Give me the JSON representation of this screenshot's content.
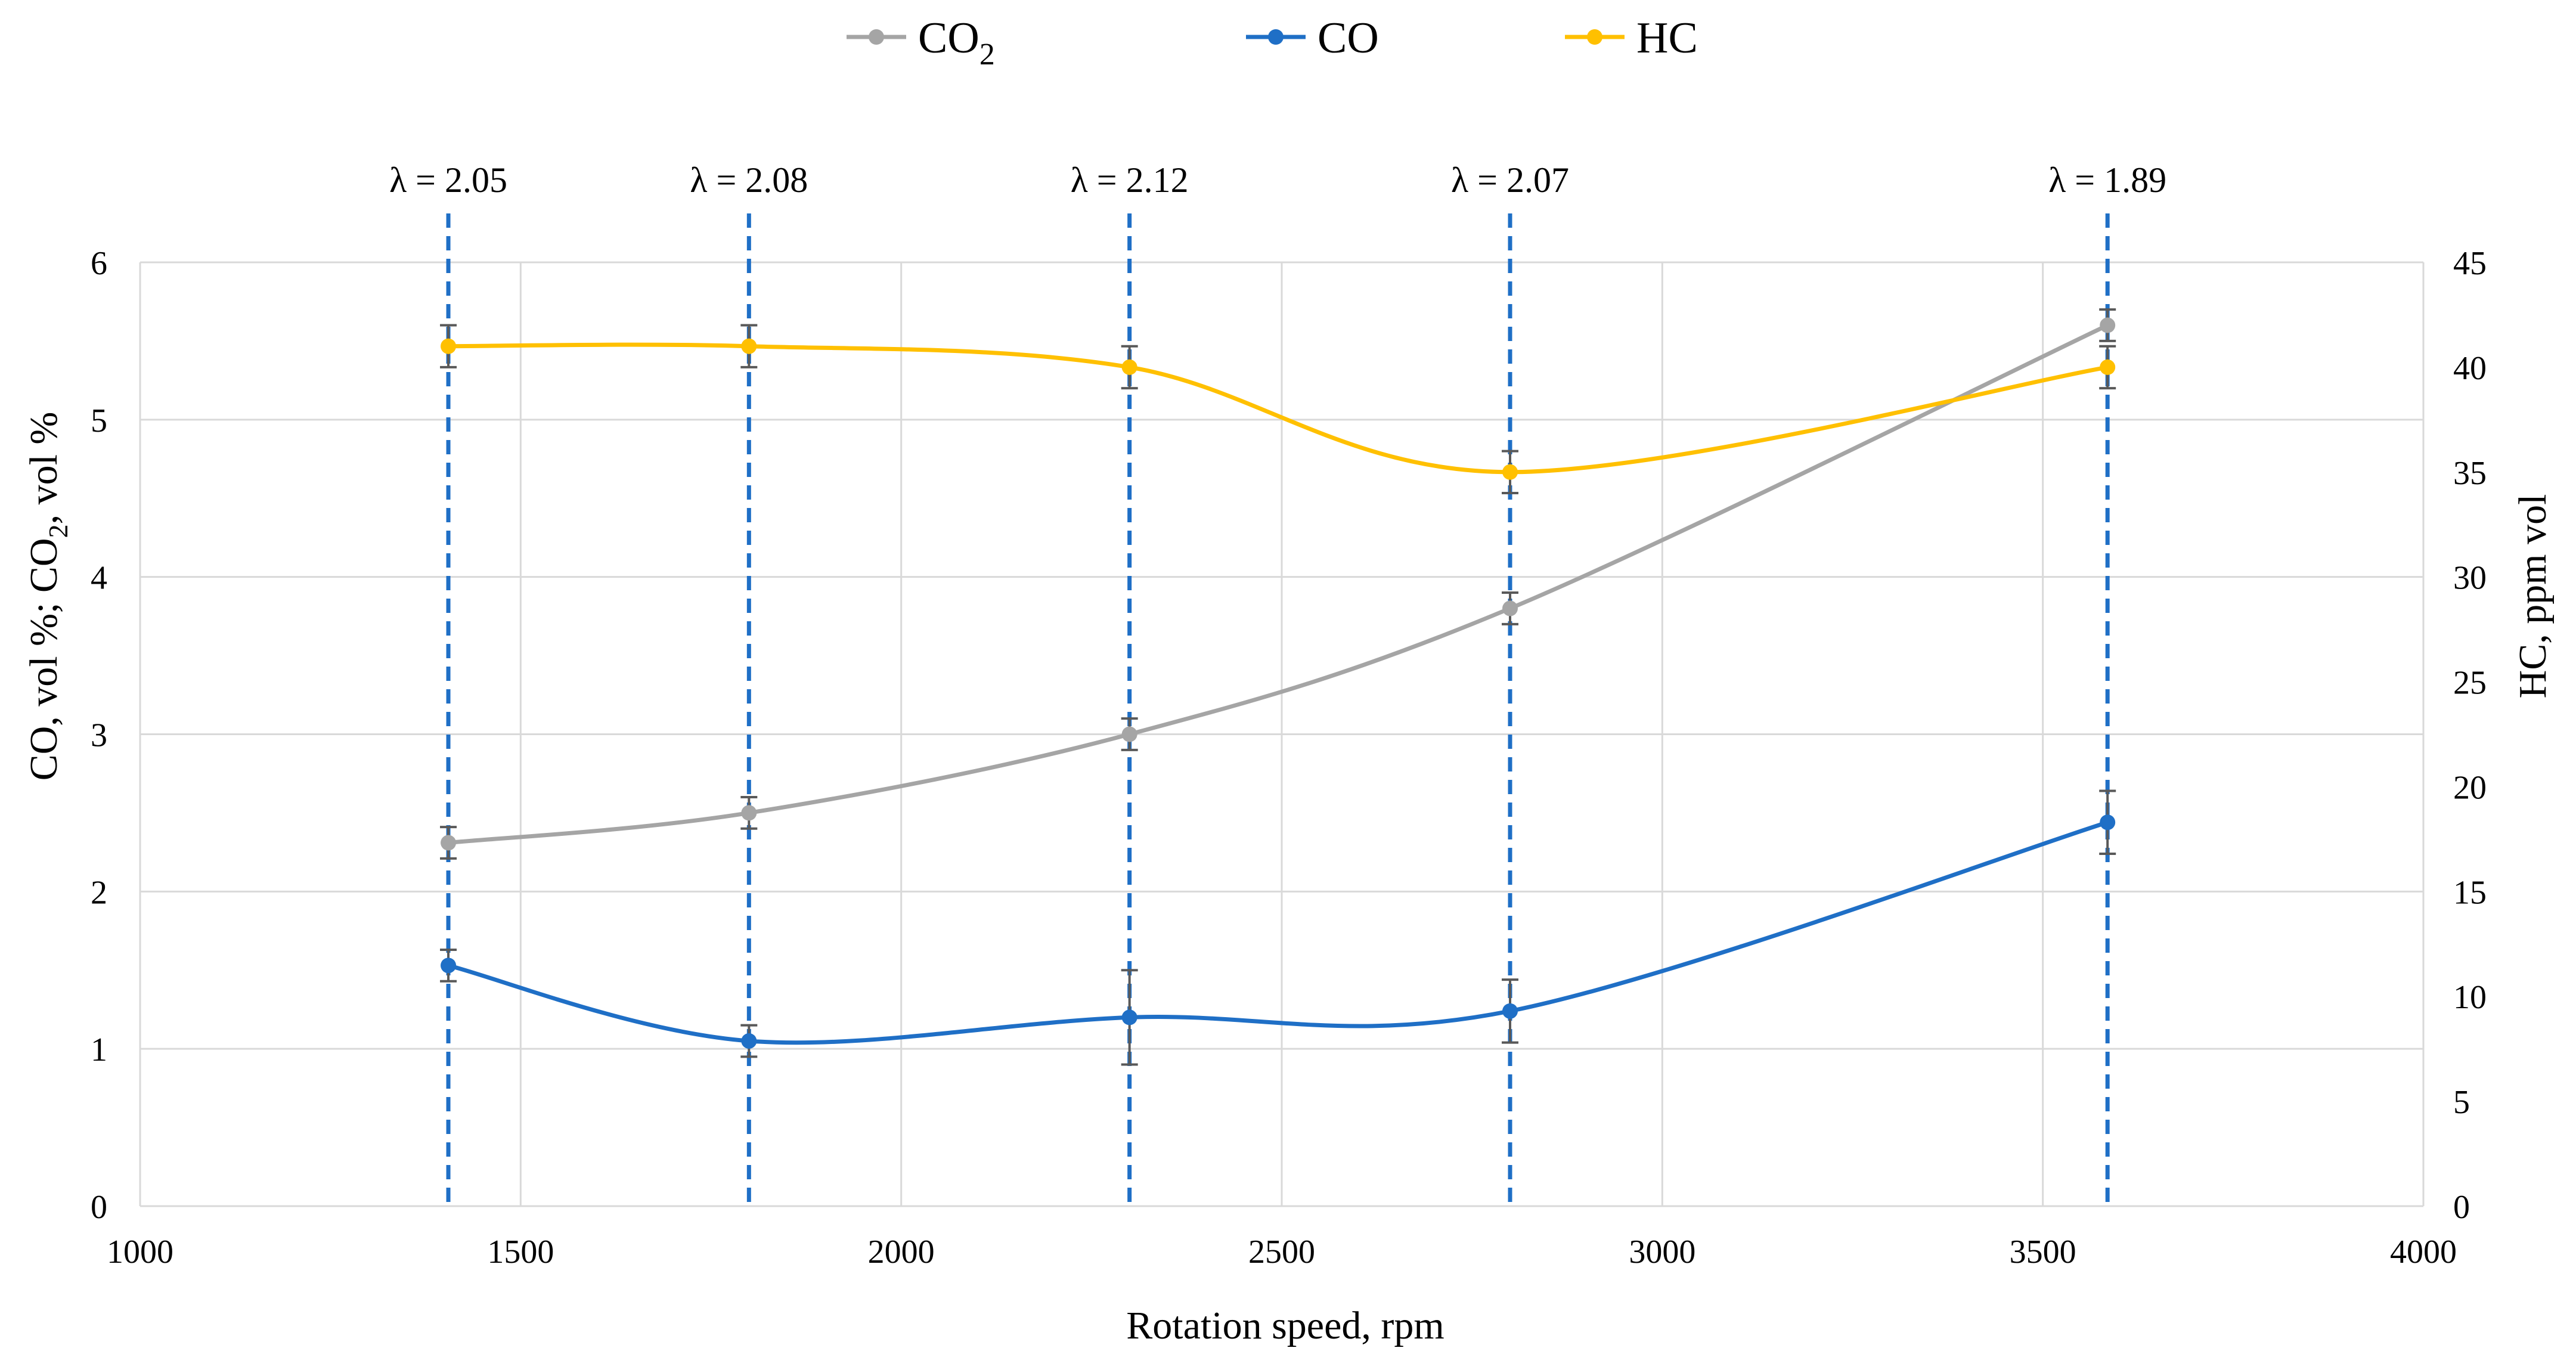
{
  "chart_data": {
    "type": "line",
    "title": "",
    "xlabel": "Rotation speed, rpm",
    "ylabel_left": {
      "main": "CO, vol %; CO",
      "sub": "2",
      "tail": ", vol %"
    },
    "ylabel_right": "HC, ppm vol",
    "xlim": [
      1000,
      4000
    ],
    "xticks": [
      "1000",
      "1500",
      "2000",
      "2500",
      "3000",
      "3500",
      "4000"
    ],
    "ylim_left": [
      0,
      6
    ],
    "yticks_left": [
      "0",
      "1",
      "2",
      "3",
      "4",
      "5",
      "6"
    ],
    "ylim_right": [
      0,
      45
    ],
    "yticks_right": [
      "0",
      "5",
      "10",
      "15",
      "20",
      "25",
      "30",
      "35",
      "40",
      "45"
    ],
    "grid": true,
    "legend_position": "top-center",
    "lambda_markers": [
      {
        "x": 1405,
        "label": "λ = 2.05"
      },
      {
        "x": 1800,
        "label": "λ = 2.08"
      },
      {
        "x": 2300,
        "label": "λ = 2.12"
      },
      {
        "x": 2800,
        "label": "λ = 2.07"
      },
      {
        "x": 3585,
        "label": "λ = 1.89"
      }
    ],
    "series": [
      {
        "name": "CO",
        "name_sub": "2",
        "color": "#a5a5a5",
        "axis": "left",
        "x": [
          1405,
          1800,
          2300,
          2800,
          3585
        ],
        "y": [
          2.31,
          2.5,
          3.0,
          3.8,
          5.6
        ],
        "err": [
          0.1,
          0.1,
          0.1,
          0.1,
          0.1
        ]
      },
      {
        "name": "CO",
        "name_sub": "",
        "color": "#1f6fc6",
        "axis": "left",
        "x": [
          1405,
          1800,
          2300,
          2800,
          3585
        ],
        "y": [
          1.53,
          1.05,
          1.2,
          1.24,
          2.44
        ],
        "err": [
          0.1,
          0.1,
          0.3,
          0.2,
          0.2
        ]
      },
      {
        "name": "HC",
        "name_sub": "",
        "color": "#ffc000",
        "axis": "right",
        "x": [
          1405,
          1800,
          2300,
          2800,
          3585
        ],
        "y": [
          41,
          41,
          40,
          35,
          40
        ],
        "err": [
          1,
          1,
          1,
          1,
          1
        ]
      }
    ]
  }
}
